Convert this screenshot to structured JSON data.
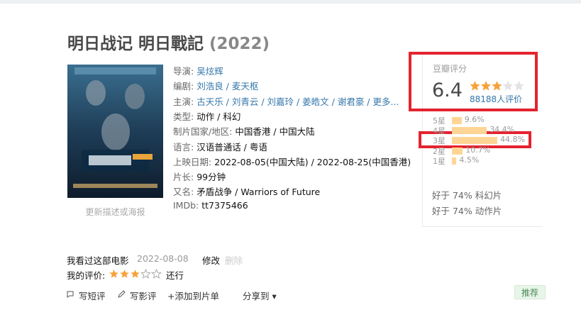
{
  "header": {
    "title": "明日战记 明日戰記",
    "year": "(2022)"
  },
  "poster_caption": "更新描述或海报",
  "info": [
    {
      "label": "导演:",
      "value": "吴炫辉",
      "link": true
    },
    {
      "label": "编剧:",
      "value": "刘浩良 / 麦天枢",
      "link": true
    },
    {
      "label": "主演:",
      "value": "古天乐 / 刘青云 / 刘嘉玲 / 姜皓文 / 谢君豪 / 更多...",
      "link": true
    },
    {
      "label": "类型:",
      "value": "动作 / 科幻",
      "link": false
    },
    {
      "label": "制片国家/地区:",
      "value": "中国香港 / 中国大陆",
      "link": false
    },
    {
      "label": "语言:",
      "value": "汉语普通话 / 粤语",
      "link": false
    },
    {
      "label": "上映日期:",
      "value": "2022-08-05(中国大陆) / 2022-08-25(中国香港)",
      "link": false
    },
    {
      "label": "片长:",
      "value": "99分钟",
      "link": false
    },
    {
      "label": "又名:",
      "value": "矛盾战争 / Warriors of Future",
      "link": false
    },
    {
      "label": "IMDb:",
      "value": "tt7375466",
      "link": false
    }
  ],
  "rating": {
    "title": "豆瓣评分",
    "score": 6.4,
    "votes": "88188人评价",
    "histogram": {
      "labels": [
        "5星",
        "4星",
        "3星",
        "2星",
        "1星"
      ],
      "values": [
        9.6,
        34.4,
        44.8,
        10.7,
        4.5
      ],
      "value_labels": [
        "9.6%",
        "34.4%",
        "44.8%",
        "10.7%",
        "4.5%"
      ]
    },
    "better_than": [
      "好于 74% 科幻片",
      "好于 74% 动作片"
    ]
  },
  "my_record": {
    "watched": "我看过这部电影",
    "date": "2022-08-08",
    "edit": "修改",
    "delete": "删除",
    "rating_label": "我的评价:",
    "stars": 3,
    "rating_text": "还行"
  },
  "actions": {
    "short_review": "写短评",
    "review": "写影评",
    "add_list": "+添加到片单",
    "share": "分享到 ▾",
    "recommend": "推荐"
  }
}
